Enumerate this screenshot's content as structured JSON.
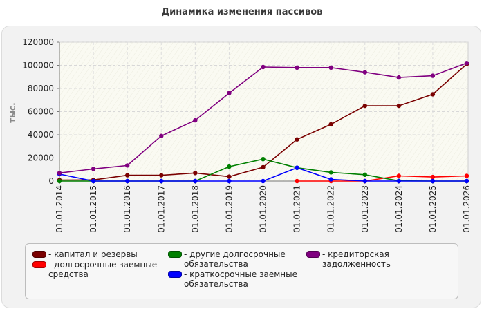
{
  "chart_data": {
    "type": "line",
    "title": "Динамика изменения пассивов",
    "ylabel": "тыс.",
    "xlabel": "",
    "categories": [
      "01.01.2014",
      "01.01.2015",
      "01.01.2016",
      "01.01.2017",
      "01.01.2018",
      "01.01.2019",
      "01.01.2020",
      "01.01.2021",
      "01.01.2022",
      "01.01.2023",
      "01.01.2024",
      "01.01.2025",
      "01.01.2026"
    ],
    "ylim": [
      0,
      120000
    ],
    "yticks": [
      "0",
      "20000",
      "40000",
      "60000",
      "80000",
      "100000",
      "120000"
    ],
    "grid": true,
    "legend_position": "bottom",
    "series": [
      {
        "name": "капитал и резервы",
        "color": "#7a0000",
        "values": [
          900,
          1000,
          5000,
          5000,
          7000,
          3800,
          12000,
          36000,
          49000,
          65000,
          65000,
          75000,
          101000
        ]
      },
      {
        "name": "долгосрочные заемные средства",
        "color": "#ff0000",
        "values": [
          null,
          null,
          null,
          null,
          null,
          null,
          null,
          0,
          0,
          0,
          4500,
          3500,
          4500
        ]
      },
      {
        "name": "другие долгосрочные обязательства",
        "color": "#008000",
        "values": [
          0,
          0,
          0,
          0,
          0,
          12500,
          19000,
          11500,
          7500,
          5500,
          200,
          0,
          0
        ]
      },
      {
        "name": "краткосрочные заемные обязательства",
        "color": "#0000ff",
        "values": [
          6000,
          0,
          0,
          0,
          0,
          0,
          0,
          11500,
          1500,
          0,
          0,
          0,
          0
        ]
      },
      {
        "name": "кредиторская задолженность",
        "color": "#800080",
        "values": [
          7000,
          10500,
          13500,
          39000,
          52500,
          76000,
          98500,
          98000,
          98000,
          94000,
          89500,
          91000,
          102000
        ]
      }
    ]
  },
  "legend": {
    "items": [
      {
        "label": "- капитал и резервы",
        "color": "#7a0000"
      },
      {
        "label": "- долгосрочные заемные средства",
        "color": "#ff0000"
      },
      {
        "label": "- другие долгосрочные обязательства",
        "color": "#008000"
      },
      {
        "label": "- краткосрочные заемные обязательства",
        "color": "#0000ff"
      },
      {
        "label": "- кредиторская задолженность",
        "color": "#800080"
      }
    ]
  }
}
